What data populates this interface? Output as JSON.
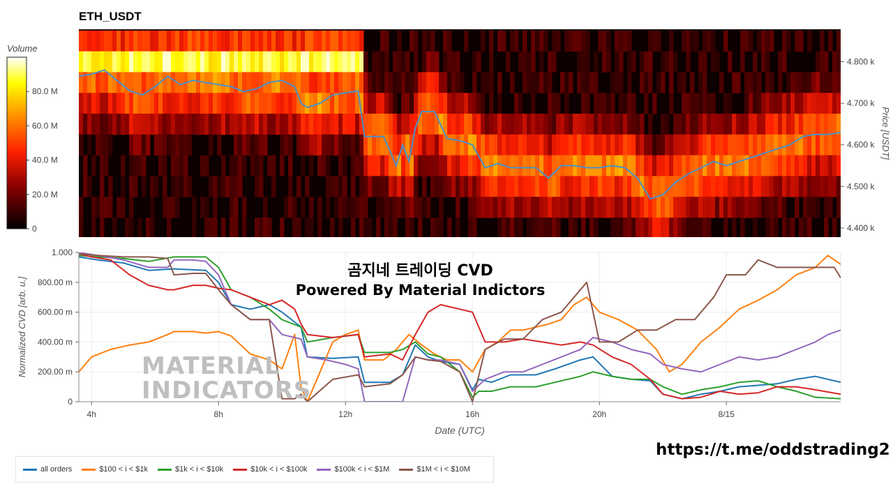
{
  "title": "ETH_USDT",
  "overlay": {
    "line1": "곰지네 트레이딩 CVD",
    "line2": "Powered By Material Indictors",
    "watermark_line1": "MATERIAL",
    "watermark_line2": "INDICATORS",
    "link": "https://t.me/oddstrading2"
  },
  "colors": {
    "all_orders": "#1f77b4",
    "s100_1k": "#ff7f0e",
    "s1k_10k": "#2ca02c",
    "s10k_100k": "#d62728",
    "s100k_1m": "#9467bd",
    "s1m_10m": "#8c564b",
    "price_line": "#4a90c8"
  },
  "chart_data": [
    {
      "type": "heatmap",
      "title": "ETH_USDT",
      "colorbar_title": "Volume",
      "colorbar_ticks": [
        "0",
        "20.0 M",
        "40.0 M",
        "60.0 M",
        "80.0 M"
      ],
      "colorbar_values": [
        0,
        20,
        40,
        60,
        80
      ],
      "colorbar_max": 100,
      "ylabel": "Price [USDT]",
      "yticks": [
        "4.400 k",
        "4.500 k",
        "4.600 k",
        "4.700 k",
        "4.800 k"
      ],
      "ytick_values": [
        4400,
        4500,
        4600,
        4700,
        4800
      ],
      "ylim": [
        4378,
        4878
      ],
      "xlim": [
        3.6,
        27.6
      ],
      "price_levels": [
        4850,
        4800,
        4750,
        4700,
        4650,
        4600,
        4550,
        4500,
        4450,
        4400
      ],
      "price_series": {
        "name": "price",
        "x": [
          3.6,
          4.0,
          4.4,
          4.8,
          5.2,
          5.6,
          6.0,
          6.4,
          6.6,
          6.8,
          7.2,
          7.6,
          8.0,
          8.4,
          8.8,
          9.2,
          9.6,
          10.0,
          10.4,
          10.6,
          10.8,
          11.2,
          11.6,
          12.0,
          12.4,
          12.6,
          12.8,
          13.2,
          13.6,
          13.8,
          14.0,
          14.2,
          14.4,
          14.8,
          15.2,
          15.6,
          16.0,
          16.4,
          16.8,
          17.2,
          17.6,
          18.0,
          18.4,
          18.8,
          19.2,
          19.6,
          20.0,
          20.4,
          20.8,
          21.2,
          21.6,
          22.0,
          22.4,
          22.8,
          23.2,
          23.6,
          24.0,
          24.4,
          24.8,
          25.2,
          25.6,
          26.0,
          26.4,
          26.8,
          27.2,
          27.6
        ],
        "y": [
          4765,
          4770,
          4780,
          4755,
          4730,
          4720,
          4740,
          4765,
          4755,
          4745,
          4755,
          4750,
          4745,
          4740,
          4728,
          4735,
          4750,
          4755,
          4740,
          4700,
          4690,
          4700,
          4720,
          4725,
          4730,
          4620,
          4620,
          4620,
          4550,
          4600,
          4560,
          4640,
          4680,
          4680,
          4615,
          4610,
          4600,
          4545,
          4555,
          4545,
          4545,
          4545,
          4520,
          4550,
          4550,
          4545,
          4545,
          4550,
          4545,
          4520,
          4470,
          4480,
          4510,
          4530,
          4545,
          4560,
          4550,
          4560,
          4570,
          4580,
          4590,
          4600,
          4620,
          4625,
          4625,
          4630
        ]
      }
    },
    {
      "type": "line",
      "xlabel": "Date (UTC)",
      "ylabel": "Normalized CVD [arb. u.]",
      "ylim": [
        0,
        1.0
      ],
      "xlim": [
        3.6,
        27.6
      ],
      "yticks": [
        "0",
        "200.00 m",
        "400.00 m",
        "600.00 m",
        "800.00 m",
        "1.000"
      ],
      "ytick_values": [
        0,
        0.2,
        0.4,
        0.6,
        0.8,
        1.0
      ],
      "xticks": [
        "4h",
        "8h",
        "12h",
        "16h",
        "20h",
        "8/15"
      ],
      "xtick_values": [
        4,
        8,
        12,
        16,
        20,
        24
      ],
      "series": [
        {
          "name": "all orders",
          "color": "#1f77b4",
          "x": [
            3.6,
            4.2,
            5.0,
            5.8,
            6.6,
            7.6,
            8.0,
            8.4,
            9.0,
            9.6,
            10.0,
            10.6,
            10.8,
            11.6,
            12.4,
            12.6,
            13.4,
            13.8,
            14.2,
            14.6,
            15.0,
            15.6,
            16.0,
            16.2,
            16.6,
            17.2,
            18.0,
            18.6,
            19.4,
            19.8,
            20.4,
            21.0,
            21.6,
            22.0,
            22.6,
            23.2,
            23.8,
            24.4,
            25.0,
            25.6,
            26.2,
            26.8,
            27.6
          ],
          "y": [
            0.97,
            0.95,
            0.93,
            0.88,
            0.89,
            0.88,
            0.8,
            0.65,
            0.62,
            0.65,
            0.6,
            0.5,
            0.3,
            0.29,
            0.3,
            0.13,
            0.13,
            0.18,
            0.38,
            0.3,
            0.27,
            0.25,
            0.08,
            0.15,
            0.13,
            0.18,
            0.18,
            0.22,
            0.28,
            0.3,
            0.17,
            0.15,
            0.14,
            0.05,
            0.02,
            0.05,
            0.07,
            0.1,
            0.11,
            0.12,
            0.15,
            0.17,
            0.13
          ]
        },
        {
          "name": "$100 < i < $1k",
          "color": "#ff7f0e",
          "x": [
            3.6,
            4.0,
            4.6,
            5.2,
            5.8,
            6.4,
            6.6,
            7.2,
            7.6,
            8.0,
            8.4,
            9.0,
            9.6,
            10.0,
            10.4,
            10.6,
            10.8,
            11.2,
            11.6,
            12.0,
            12.4,
            12.6,
            13.2,
            13.6,
            14.0,
            14.4,
            14.8,
            15.2,
            15.6,
            16.0,
            16.4,
            16.8,
            17.2,
            17.6,
            18.0,
            18.4,
            18.8,
            19.2,
            19.6,
            20.0,
            20.6,
            21.2,
            21.8,
            22.2,
            22.6,
            23.2,
            23.8,
            24.4,
            25.0,
            25.6,
            26.2,
            26.8,
            27.2,
            27.6
          ],
          "y": [
            0.2,
            0.3,
            0.35,
            0.38,
            0.4,
            0.45,
            0.47,
            0.47,
            0.46,
            0.47,
            0.44,
            0.32,
            0.28,
            0.22,
            0.45,
            0.1,
            0.0,
            0.2,
            0.4,
            0.45,
            0.48,
            0.28,
            0.28,
            0.35,
            0.45,
            0.38,
            0.32,
            0.28,
            0.28,
            0.2,
            0.35,
            0.4,
            0.48,
            0.48,
            0.5,
            0.52,
            0.55,
            0.65,
            0.7,
            0.6,
            0.55,
            0.48,
            0.35,
            0.2,
            0.25,
            0.4,
            0.5,
            0.62,
            0.68,
            0.75,
            0.85,
            0.9,
            0.98,
            0.92
          ]
        },
        {
          "name": "$1k < i < $10k",
          "color": "#2ca02c",
          "x": [
            3.6,
            4.2,
            5.0,
            5.8,
            6.6,
            7.6,
            8.0,
            8.4,
            9.0,
            9.6,
            10.0,
            10.6,
            10.8,
            11.6,
            12.4,
            12.6,
            13.4,
            13.8,
            14.2,
            14.6,
            15.0,
            15.6,
            16.0,
            16.2,
            16.6,
            17.2,
            18.0,
            18.6,
            19.4,
            19.8,
            20.4,
            21.0,
            21.6,
            22.0,
            22.6,
            23.2,
            23.8,
            24.4,
            25.0,
            25.6,
            26.2,
            26.8,
            27.6
          ],
          "y": [
            0.98,
            0.97,
            0.96,
            0.94,
            0.97,
            0.97,
            0.9,
            0.75,
            0.7,
            0.62,
            0.55,
            0.5,
            0.4,
            0.43,
            0.45,
            0.33,
            0.33,
            0.35,
            0.4,
            0.32,
            0.3,
            0.2,
            0.03,
            0.07,
            0.07,
            0.1,
            0.1,
            0.13,
            0.17,
            0.2,
            0.17,
            0.15,
            0.15,
            0.1,
            0.05,
            0.08,
            0.1,
            0.13,
            0.14,
            0.1,
            0.07,
            0.03,
            0.02
          ]
        },
        {
          "name": "$10k < i < $100k",
          "color": "#d62728",
          "x": [
            3.6,
            4.0,
            4.6,
            5.2,
            5.8,
            6.4,
            6.6,
            7.2,
            7.6,
            8.0,
            8.4,
            9.0,
            9.6,
            10.0,
            10.4,
            10.6,
            10.8,
            11.6,
            12.4,
            12.6,
            13.4,
            13.8,
            14.2,
            14.6,
            15.0,
            15.6,
            16.0,
            16.4,
            17.0,
            17.6,
            18.2,
            18.8,
            19.4,
            19.8,
            20.4,
            21.0,
            21.6,
            22.0,
            22.6,
            23.2,
            23.8,
            24.4,
            25.0,
            25.6,
            26.2,
            26.8,
            27.6
          ],
          "y": [
            0.99,
            0.97,
            0.95,
            0.85,
            0.78,
            0.75,
            0.75,
            0.78,
            0.78,
            0.76,
            0.75,
            0.7,
            0.65,
            0.68,
            0.62,
            0.52,
            0.45,
            0.43,
            0.45,
            0.3,
            0.32,
            0.28,
            0.45,
            0.6,
            0.65,
            0.62,
            0.6,
            0.4,
            0.4,
            0.42,
            0.4,
            0.38,
            0.4,
            0.38,
            0.3,
            0.25,
            0.15,
            0.05,
            0.02,
            0.03,
            0.07,
            0.05,
            0.06,
            0.1,
            0.1,
            0.08,
            0.05
          ]
        },
        {
          "name": "$100k < i < $1M",
          "color": "#9467bd",
          "x": [
            3.6,
            4.2,
            5.0,
            5.8,
            6.4,
            6.6,
            7.2,
            7.6,
            8.0,
            8.4,
            9.0,
            9.6,
            10.0,
            10.6,
            10.8,
            11.4,
            12.0,
            12.4,
            12.6,
            13.4,
            13.8,
            14.2,
            14.6,
            15.0,
            15.6,
            16.0,
            16.4,
            17.0,
            17.6,
            18.2,
            18.8,
            19.4,
            19.8,
            20.4,
            21.0,
            21.6,
            22.0,
            22.6,
            23.2,
            23.8,
            24.4,
            25.0,
            25.6,
            26.2,
            26.8,
            27.2,
            27.6
          ],
          "y": [
            1.0,
            0.98,
            0.95,
            0.9,
            0.9,
            0.95,
            0.95,
            0.94,
            0.85,
            0.65,
            0.55,
            0.55,
            0.45,
            0.42,
            0.3,
            0.28,
            0.25,
            0.22,
            0.0,
            0.0,
            0.0,
            0.3,
            0.28,
            0.28,
            0.25,
            0.07,
            0.15,
            0.2,
            0.2,
            0.25,
            0.3,
            0.35,
            0.43,
            0.4,
            0.35,
            0.32,
            0.25,
            0.22,
            0.2,
            0.25,
            0.3,
            0.28,
            0.3,
            0.35,
            0.4,
            0.45,
            0.48
          ]
        },
        {
          "name": "$1M < i < $10M",
          "color": "#8c564b",
          "x": [
            3.6,
            4.2,
            5.0,
            5.8,
            6.4,
            6.6,
            7.2,
            7.6,
            8.0,
            8.4,
            9.0,
            9.6,
            10.0,
            10.4,
            10.6,
            10.8,
            11.6,
            12.4,
            12.6,
            13.4,
            13.8,
            14.2,
            14.6,
            15.0,
            15.6,
            16.0,
            16.4,
            17.0,
            17.6,
            18.2,
            18.8,
            19.2,
            19.6,
            20.0,
            20.6,
            21.2,
            21.8,
            22.4,
            23.0,
            23.6,
            24.0,
            24.6,
            25.0,
            25.6,
            26.2,
            26.8,
            27.4,
            27.6
          ],
          "y": [
            0.99,
            0.98,
            0.97,
            0.97,
            0.96,
            0.85,
            0.86,
            0.86,
            0.75,
            0.65,
            0.55,
            0.55,
            0.02,
            0.02,
            0.05,
            0.0,
            0.15,
            0.18,
            0.1,
            0.12,
            0.18,
            0.3,
            0.28,
            0.27,
            0.2,
            0.0,
            0.35,
            0.42,
            0.42,
            0.55,
            0.6,
            0.7,
            0.8,
            0.4,
            0.4,
            0.48,
            0.48,
            0.55,
            0.55,
            0.7,
            0.85,
            0.85,
            0.95,
            0.9,
            0.9,
            0.9,
            0.9,
            0.83
          ]
        }
      ]
    }
  ]
}
